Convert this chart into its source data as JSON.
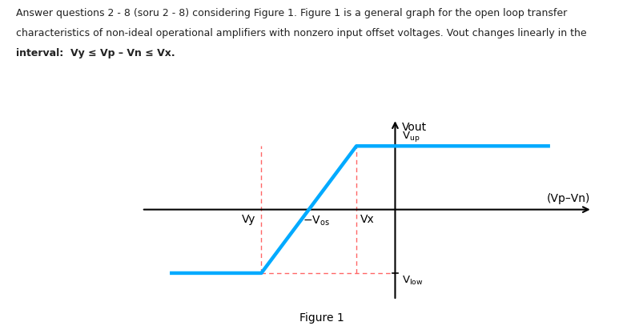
{
  "figure_caption": "Figure 1",
  "ylabel": "Vout",
  "xlabel": "(Vp–Vn)",
  "curve_color": "#00AAFF",
  "curve_linewidth": 3.2,
  "axis_color": "#000000",
  "dashed_color": "#FF6666",
  "background_color": "#ffffff",
  "x_low_flat": -3.2,
  "x_transition_start": -1.9,
  "x_transition_end": -0.55,
  "x_high_flat_end": 2.2,
  "y_low": -1.4,
  "y_high": 1.4,
  "x_origin": 0.0,
  "x_axis_left": -3.6,
  "x_axis_right": 2.8,
  "y_axis_bottom": -2.0,
  "y_axis_top": 2.0,
  "header_fontsize": 9.0,
  "label_fontsize": 10,
  "header_line1": "Answer questions 2 - 8 (soru 2 - 8) considering Figure 1. Figure 1 is a general graph for the open loop transfer",
  "header_line2": "characteristics of non-ideal operational amplifiers with nonzero input offset voltages. Vout changes linearly in the",
  "header_line3": "interval:  Vy ≤ Vp – Vn ≤ Vx."
}
